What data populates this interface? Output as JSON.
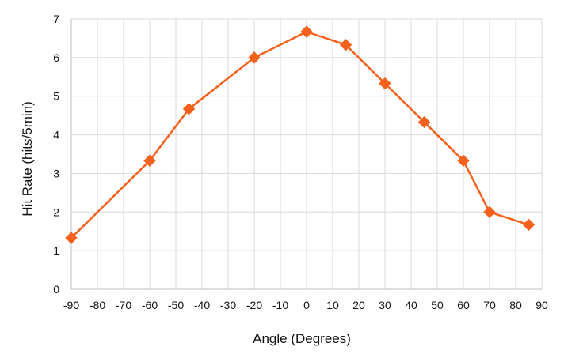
{
  "chart_data": {
    "type": "line",
    "title": "",
    "xlabel": "Angle  (Degrees)",
    "ylabel": "Hit Rate (hits/5min)",
    "xlim": [
      -90,
      90
    ],
    "ylim": [
      0,
      7
    ],
    "xticks": [
      -90,
      -80,
      -70,
      -60,
      -50,
      -40,
      -30,
      -20,
      -10,
      0,
      10,
      20,
      30,
      40,
      50,
      60,
      70,
      80,
      90
    ],
    "yticks": [
      0,
      1,
      2,
      3,
      4,
      5,
      6,
      7
    ],
    "grid": true,
    "legend": "none",
    "marker": "diamond",
    "series": [
      {
        "color": "#F4611C",
        "x": [
          -90,
          -60,
          -45,
          -20,
          0,
          15,
          30,
          45,
          60,
          70,
          85
        ],
        "y": [
          1.33,
          3.33,
          4.67,
          6.0,
          6.67,
          6.33,
          5.33,
          4.33,
          3.33,
          2.0,
          1.67
        ]
      }
    ]
  }
}
